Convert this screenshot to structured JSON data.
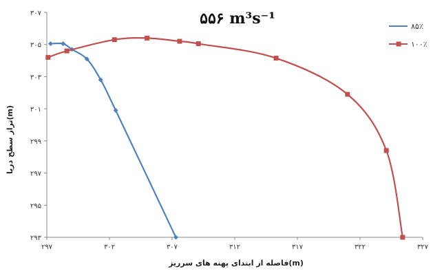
{
  "chart_data": {
    "type": "line",
    "title": "۵۵۶ m³s⁻¹",
    "xlabel": "فاصله از ابتدای پهنه های سرریز(m)",
    "ylabel": "تراز سطح دریا(m)",
    "xlim": [
      297,
      327
    ],
    "ylim": [
      293,
      307
    ],
    "x_ticks": [
      297,
      302,
      307,
      312,
      317,
      322,
      327
    ],
    "x_tick_labels": [
      "۲۹۷",
      "۳۰۲",
      "۳۰۷",
      "۳۱۲",
      "۳۱۷",
      "۳۲۲",
      "۳۲۷"
    ],
    "y_ticks": [
      293,
      295,
      297,
      299,
      301,
      303,
      305,
      307
    ],
    "y_tick_labels": [
      "۲۹۳",
      "۲۹۵",
      "۲۹۷",
      "۲۹۹",
      "۳۰۱",
      "۳۰۳",
      "۳۰۵",
      "۳۰۷"
    ],
    "grid": false,
    "legend_position": "top-right",
    "series": [
      {
        "name": "۸۵٪",
        "color": "#4f81bd",
        "marker": "diamond",
        "points": [
          [
            297.3,
            305.05
          ],
          [
            298.3,
            305.05
          ],
          [
            299.0,
            304.7
          ],
          [
            300.2,
            304.1
          ],
          [
            301.3,
            302.8
          ],
          [
            302.5,
            300.9
          ],
          [
            307.3,
            293.0
          ]
        ]
      },
      {
        "name": "۱۰۰٪",
        "color": "#c0504d",
        "marker": "square",
        "points": [
          [
            297.1,
            304.2
          ],
          [
            298.6,
            304.6
          ],
          [
            302.4,
            305.3
          ],
          [
            305.0,
            305.4
          ],
          [
            307.6,
            305.2
          ],
          [
            309.1,
            305.05
          ],
          [
            315.3,
            304.15
          ],
          [
            321.0,
            301.9
          ],
          [
            324.1,
            298.4
          ],
          [
            325.4,
            293.0
          ]
        ]
      }
    ]
  }
}
